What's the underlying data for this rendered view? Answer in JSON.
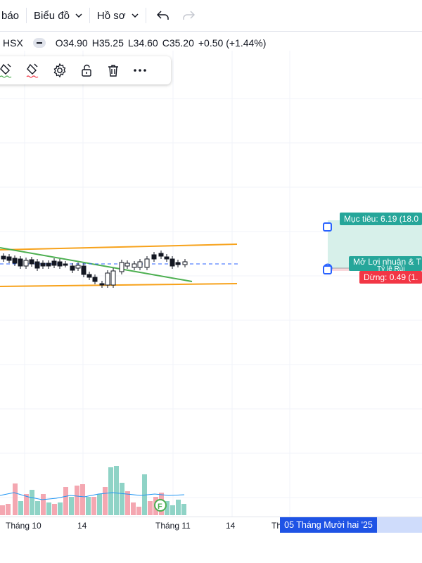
{
  "topbar": {
    "menu_partial": "báo",
    "chart_menu": "Biểu đồ",
    "profile_menu": "Hồ sơ"
  },
  "legend": {
    "exchange": "HSX",
    "open": "O34.90",
    "high": "H35.25",
    "low": "L34.60",
    "close": "C35.20",
    "change": "+0.50 (+1.44%)"
  },
  "drawing_toolbar": {
    "tools": [
      "line-color-icon",
      "fill-color-icon",
      "settings-icon",
      "unlock-icon",
      "trash-icon",
      "more-icon"
    ]
  },
  "position_tool": {
    "target_label": "Mục tiêu: 6.19 (18.0",
    "open_label": "Mở Lợi nhuận & T",
    "open_sublabel": "Tỷ lệ Rủi",
    "stop_label": "Dừng: 0.49 (1.",
    "target_color": "#26a69a",
    "stop_color": "#f23645"
  },
  "x_axis": {
    "ticks": [
      "Tháng 10",
      "14",
      "Tháng 11",
      "14",
      "Th"
    ],
    "crosshair_date": "05 Tháng Mười hai '25"
  },
  "colors": {
    "channel": "#f7a21b",
    "trendline": "#4caf50",
    "price_line": "#2962ff",
    "volume_up": "#8fd3c6",
    "volume_down": "#f4a7b1"
  }
}
